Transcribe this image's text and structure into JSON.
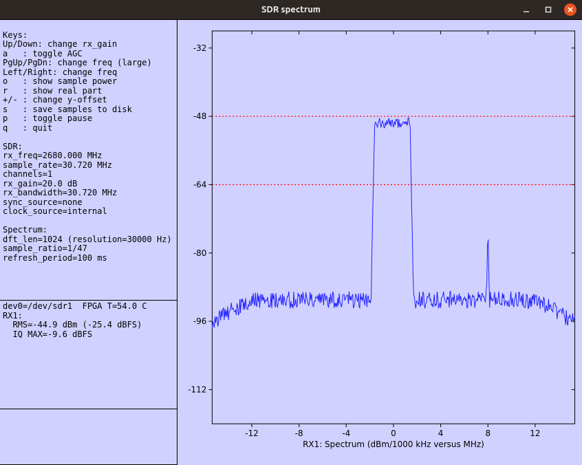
{
  "window": {
    "title": "SDR spectrum"
  },
  "help": {
    "heading": "Keys:",
    "lines": [
      "Up/Down: change rx_gain",
      "a   : toggle AGC",
      "PgUp/PgDn: change freq (large)",
      "Left/Right: change freq",
      "o   : show sample power",
      "r   : show real part",
      "+/- : change y-offset",
      "s   : save samples to disk",
      "p   : toggle pause",
      "q   : quit"
    ],
    "sdr_heading": "SDR:",
    "sdr_lines": [
      "rx_freq=2680.000 MHz",
      "sample_rate=30.720 MHz",
      "channels=1",
      "rx_gain=20.0 dB",
      "rx_bandwidth=30.720 MHz",
      "sync_source=none",
      "clock_source=internal"
    ],
    "spec_heading": "Spectrum:",
    "spec_lines": [
      "dft_len=1024 (resolution=30000 Hz)",
      "sample_ratio=1/47",
      "refresh_period=100 ms"
    ]
  },
  "status": {
    "lines": [
      "dev0=/dev/sdr1  FPGA T=54.0 C",
      "RX1:",
      "  RMS=-44.9 dBm (-25.4 dBFS)",
      "  IQ MAX=-9.6 dBFS"
    ]
  },
  "chart": {
    "type": "line",
    "xlabel": "RX1: Spectrum (dBm/1000 kHz versus MHz)",
    "xlim": [
      -15.36,
      15.36
    ],
    "ylim": [
      -120,
      -28
    ],
    "xticks": [
      -12,
      -8,
      -4,
      0,
      4,
      8,
      12
    ],
    "yticks": [
      -32,
      -48,
      -64,
      -80,
      -96,
      -112
    ],
    "line_color": "#2020ff",
    "line_width": 1,
    "threshold_lines": [
      {
        "y": -48,
        "color": "#ff0000",
        "dash": "2,3"
      },
      {
        "y": -64,
        "color": "#ff0000",
        "dash": "2,3"
      }
    ],
    "background_color": "#d1d1ff",
    "axis_color": "#000000",
    "tick_fontsize": 12,
    "label_fontsize": 12,
    "noise_floor": -91,
    "noise_jitter": 2.0,
    "signal_band": {
      "x_start": -1.6,
      "x_end": 1.4,
      "level": -49.5,
      "jitter": 1.2
    },
    "spur": {
      "x": 8.0,
      "peak": -73,
      "width": 0.12
    },
    "edges": {
      "left_rise": -95.5,
      "right_fall": -95.5
    }
  }
}
